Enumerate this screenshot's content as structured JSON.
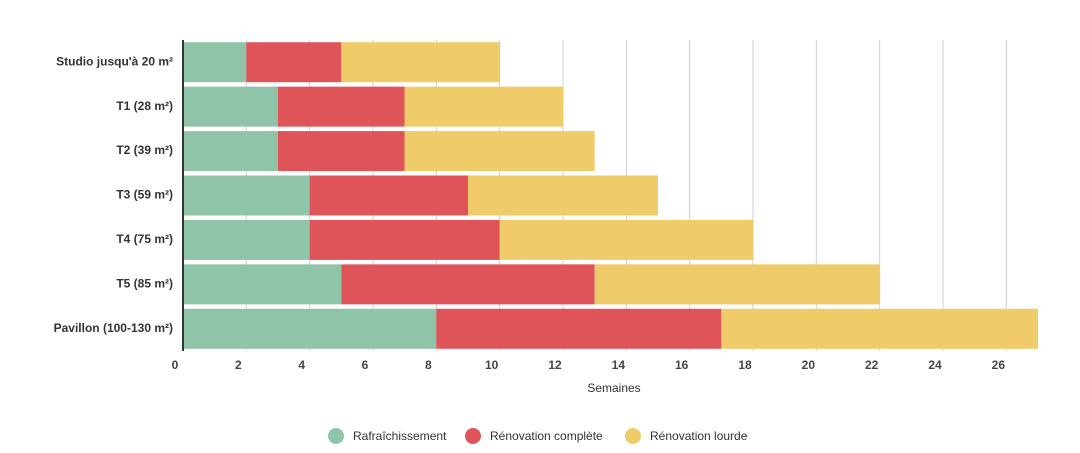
{
  "chart_data": {
    "type": "stacked_bar_horizontal",
    "categories": [
      "Studio jusqu'à 20 m²",
      "T1 (28 m²)",
      "T2 (39 m²)",
      "T3 (59 m²)",
      "T4 (75 m²)",
      "T5 (85 m²)",
      "Pavillon (100-130 m²)"
    ],
    "series": [
      {
        "name": "Rafraîchissement",
        "color": "#8fc4a8",
        "values": [
          2,
          3,
          3,
          4,
          4,
          5,
          8
        ]
      },
      {
        "name": "Rénovation complète",
        "color": "#df5459",
        "values": [
          3,
          4,
          4,
          5,
          6,
          8,
          9
        ]
      },
      {
        "name": "Rénovation lourde",
        "color": "#f0cb69",
        "values": [
          5,
          5,
          6,
          6,
          8,
          9,
          10
        ]
      }
    ],
    "xlabel": "Semaines",
    "xlim": [
      0,
      27
    ],
    "xticks": [
      0,
      2,
      4,
      6,
      8,
      10,
      12,
      14,
      16,
      18,
      20,
      22,
      24,
      26
    ],
    "grid": true,
    "legend": "bottom"
  }
}
